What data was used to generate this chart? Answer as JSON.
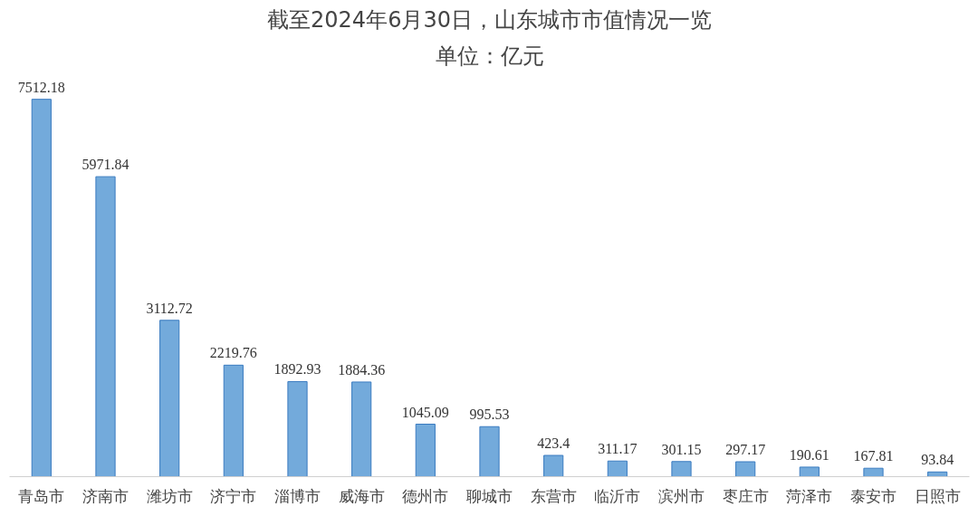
{
  "chart_data": {
    "type": "bar",
    "title": "截至2024年6月30日，山东城市市值情况一览",
    "subtitle": "单位：亿元",
    "categories": [
      "青岛市",
      "济南市",
      "潍坊市",
      "济宁市",
      "淄博市",
      "威海市",
      "德州市",
      "聊城市",
      "东营市",
      "临沂市",
      "滨州市",
      "枣庄市",
      "菏泽市",
      "泰安市",
      "日照市"
    ],
    "values": [
      7512.18,
      5971.84,
      3112.72,
      2219.76,
      1892.93,
      1884.36,
      1045.09,
      995.53,
      423.4,
      311.17,
      301.15,
      297.17,
      190.61,
      167.81,
      93.84
    ],
    "color": "#5b9bd5",
    "data_labels": true
  }
}
